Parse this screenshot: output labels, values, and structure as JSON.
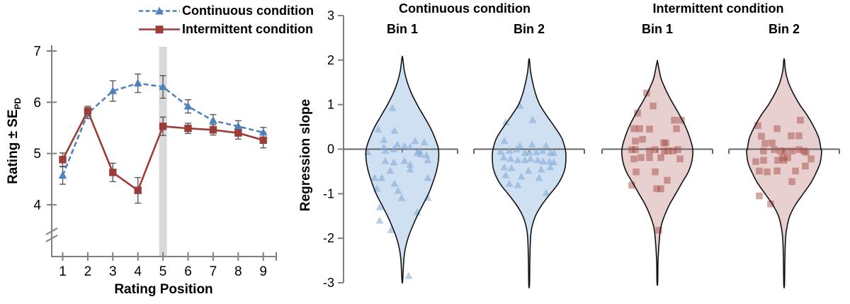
{
  "colors": {
    "continuous_line": "#4f81bd",
    "intermittent_line": "#9d3c38",
    "continuous_violin_fill": "#cfe0f2",
    "intermittent_violin_fill": "#e9d0d0",
    "continuous_point": "#7fa7d4",
    "intermittent_point": "#a85048",
    "violin_outline": "#111111",
    "axis": "#808080",
    "error_bar": "#595959",
    "highlight_band": "#d9d9d9",
    "zero_line": "#666666",
    "text": "#000000"
  },
  "figure": {
    "left": {
      "ylabel_main": "Rating ± SE",
      "ylabel_sub": "PD",
      "xlabel": "Rating Position"
    },
    "right": {
      "ylabel": "Regression slope",
      "group_titles": [
        "Continuous condition",
        "Intermittent condition"
      ],
      "bin_labels": [
        "Bin 1",
        "Bin 2",
        "Bin 1",
        "Bin 2"
      ]
    }
  },
  "chart_data": [
    {
      "type": "line",
      "title": "",
      "xlabel": "Rating Position",
      "ylabel": "Rating ± SE_PD",
      "x": [
        1,
        2,
        3,
        4,
        5,
        6,
        7,
        8,
        9
      ],
      "xticks": [
        1,
        2,
        3,
        4,
        5,
        6,
        7,
        8,
        9
      ],
      "yticks": [
        4,
        5,
        6,
        7
      ],
      "y_axis_break": true,
      "highlight_x": 5,
      "legend_position": "top",
      "series": [
        {
          "name": "Continuous condition",
          "marker": "triangle",
          "line_style": "dashed",
          "values": [
            4.57,
            5.78,
            6.22,
            6.37,
            6.3,
            5.92,
            5.64,
            5.53,
            5.41
          ],
          "errors": [
            0.17,
            0.1,
            0.2,
            0.18,
            0.22,
            0.13,
            0.12,
            0.11,
            0.1
          ]
        },
        {
          "name": "Intermittent condition",
          "marker": "square",
          "line_style": "solid",
          "values": [
            4.88,
            5.83,
            4.63,
            4.28,
            5.53,
            5.49,
            5.46,
            5.4,
            5.26
          ],
          "errors": [
            0.13,
            0.09,
            0.18,
            0.25,
            0.18,
            0.1,
            0.1,
            0.12,
            0.15
          ]
        }
      ]
    },
    {
      "type": "violin",
      "ylabel": "Regression slope",
      "yticks": [
        3,
        2,
        1,
        0,
        -1,
        -2,
        -3
      ],
      "ylim": [
        -3,
        3
      ],
      "zero_reference_line": 0,
      "violins": [
        {
          "group": "Continuous condition",
          "bin": "Bin 1",
          "marker": "triangle",
          "profile": [
            [
              2.05,
              0.5
            ],
            [
              1.75,
              3
            ],
            [
              1.5,
              7
            ],
            [
              1.25,
              13
            ],
            [
              1.0,
              21
            ],
            [
              0.75,
              30
            ],
            [
              0.5,
              39
            ],
            [
              0.25,
              46
            ],
            [
              0,
              51
            ],
            [
              -0.25,
              51
            ],
            [
              -0.5,
              48
            ],
            [
              -0.75,
              43
            ],
            [
              -1.0,
              37
            ],
            [
              -1.25,
              29
            ],
            [
              -1.5,
              21
            ],
            [
              -1.75,
              14
            ],
            [
              -2.0,
              8
            ],
            [
              -2.25,
              4
            ],
            [
              -2.5,
              2
            ],
            [
              -2.95,
              0.5
            ]
          ],
          "points": [
            [
              -14,
              0.92
            ],
            [
              -34,
              0.44
            ],
            [
              -11,
              0.41
            ],
            [
              -26,
              0.2
            ],
            [
              18,
              0.18
            ],
            [
              31,
              0.15
            ],
            [
              -7,
              0.1
            ],
            [
              3,
              0.07
            ],
            [
              11,
              0.04
            ],
            [
              -26,
              0.04
            ],
            [
              24,
              -0.04
            ],
            [
              -49,
              -0.07
            ],
            [
              -24,
              -0.04
            ],
            [
              -12,
              -0.01
            ],
            [
              21,
              -0.09
            ],
            [
              26,
              -0.12
            ],
            [
              34,
              -0.14
            ],
            [
              -24,
              -0.27
            ],
            [
              -12,
              -0.3
            ],
            [
              3,
              -0.27
            ],
            [
              11,
              -0.35
            ],
            [
              36,
              -0.25
            ],
            [
              -17,
              -0.49
            ],
            [
              11,
              -0.46
            ],
            [
              -39,
              -0.65
            ],
            [
              -29,
              -0.65
            ],
            [
              36,
              -0.65
            ],
            [
              -36,
              -0.89
            ],
            [
              -11,
              -0.78
            ],
            [
              -6,
              -0.94
            ],
            [
              -1,
              -1.1
            ],
            [
              36,
              -1.1
            ],
            [
              -32,
              -1.31
            ],
            [
              21,
              -1.42
            ],
            [
              -32,
              -1.61
            ],
            [
              -16,
              -1.82
            ],
            [
              9,
              -2.85
            ]
          ]
        },
        {
          "group": "Continuous condition",
          "bin": "Bin 2",
          "marker": "triangle",
          "profile": [
            [
              2.0,
              0.5
            ],
            [
              1.75,
              2
            ],
            [
              1.5,
              5
            ],
            [
              1.25,
              9
            ],
            [
              1.0,
              15
            ],
            [
              0.75,
              25
            ],
            [
              0.5,
              36
            ],
            [
              0.25,
              46
            ],
            [
              0,
              51
            ],
            [
              -0.15,
              52
            ],
            [
              -0.4,
              51
            ],
            [
              -0.6,
              47
            ],
            [
              -0.8,
              40
            ],
            [
              -1.0,
              30
            ],
            [
              -1.25,
              18
            ],
            [
              -1.5,
              9
            ],
            [
              -1.75,
              4
            ],
            [
              -2.0,
              2
            ],
            [
              -2.5,
              1
            ],
            [
              -3.05,
              0.5
            ]
          ],
          "points": [
            [
              -13,
              0.97
            ],
            [
              -33,
              0.6
            ],
            [
              5,
              0.65
            ],
            [
              -35,
              0.18
            ],
            [
              -13,
              0.07
            ],
            [
              4,
              0.1
            ],
            [
              24,
              0.07
            ],
            [
              -40,
              -0.06
            ],
            [
              -28,
              -0.04
            ],
            [
              -18,
              -0.01
            ],
            [
              -6,
              -0.09
            ],
            [
              0,
              -0.07
            ],
            [
              10,
              -0.07
            ],
            [
              19,
              -0.04
            ],
            [
              30,
              -0.09
            ],
            [
              35,
              -0.09
            ],
            [
              -36,
              -0.19
            ],
            [
              -26,
              -0.22
            ],
            [
              -16,
              -0.25
            ],
            [
              -6,
              -0.25
            ],
            [
              2,
              -0.22
            ],
            [
              12,
              -0.25
            ],
            [
              20,
              -0.28
            ],
            [
              29,
              -0.28
            ],
            [
              35,
              -0.3
            ],
            [
              -35,
              -0.41
            ],
            [
              -25,
              -0.43
            ],
            [
              -1,
              -0.49
            ],
            [
              17,
              -0.46
            ],
            [
              30,
              -0.41
            ],
            [
              -33,
              -0.59
            ],
            [
              -11,
              -0.62
            ],
            [
              14,
              -0.65
            ],
            [
              24,
              -0.99
            ],
            [
              -16,
              -0.81
            ],
            [
              -28,
              -0.78
            ]
          ]
        },
        {
          "group": "Intermittent condition",
          "bin": "Bin 1",
          "marker": "square",
          "profile": [
            [
              1.95,
              0.5
            ],
            [
              1.6,
              5
            ],
            [
              1.4,
              10
            ],
            [
              1.2,
              16
            ],
            [
              1.0,
              23
            ],
            [
              0.75,
              32
            ],
            [
              0.5,
              40
            ],
            [
              0.25,
              46
            ],
            [
              0,
              50
            ],
            [
              -0.25,
              49
            ],
            [
              -0.5,
              44
            ],
            [
              -0.75,
              35
            ],
            [
              -1.0,
              26
            ],
            [
              -1.25,
              17
            ],
            [
              -1.5,
              10
            ],
            [
              -1.75,
              5
            ],
            [
              -2.0,
              3
            ],
            [
              -2.5,
              1
            ],
            [
              -3.0,
              0.5
            ]
          ],
          "points": [
            [
              -15,
              1.26
            ],
            [
              -6,
              0.97
            ],
            [
              -28,
              0.81
            ],
            [
              24,
              0.65
            ],
            [
              34,
              0.65
            ],
            [
              -33,
              0.46
            ],
            [
              -25,
              0.46
            ],
            [
              -11,
              0.45
            ],
            [
              27,
              0.46
            ],
            [
              -31,
              0.18
            ],
            [
              -21,
              0.22
            ],
            [
              9,
              0.14
            ],
            [
              12,
              0.14
            ],
            [
              -36,
              -0.01
            ],
            [
              -31,
              -0.01
            ],
            [
              -11,
              -0.04
            ],
            [
              -3,
              -0.01
            ],
            [
              10,
              -0.04
            ],
            [
              15,
              -0.04
            ],
            [
              22,
              -0.04
            ],
            [
              29,
              -0.01
            ],
            [
              -33,
              -0.22
            ],
            [
              -23,
              -0.19
            ],
            [
              -11,
              -0.19
            ],
            [
              5,
              -0.19
            ],
            [
              32,
              -0.22
            ],
            [
              -30,
              -0.51
            ],
            [
              -3,
              -0.51
            ],
            [
              14,
              -0.7
            ],
            [
              -36,
              -0.81
            ],
            [
              -1,
              -0.89
            ],
            [
              5,
              -0.89
            ],
            [
              2,
              -1.82
            ]
          ]
        },
        {
          "group": "Intermittent condition",
          "bin": "Bin 2",
          "marker": "square",
          "profile": [
            [
              2.0,
              0.5
            ],
            [
              1.75,
              2
            ],
            [
              1.5,
              6
            ],
            [
              1.25,
              13
            ],
            [
              1.0,
              22
            ],
            [
              0.75,
              33
            ],
            [
              0.5,
              42
            ],
            [
              0.25,
              49
            ],
            [
              0,
              52
            ],
            [
              -0.05,
              53
            ],
            [
              -0.3,
              51
            ],
            [
              -0.5,
              46
            ],
            [
              -0.75,
              38
            ],
            [
              -1.0,
              27
            ],
            [
              -1.25,
              16
            ],
            [
              -1.5,
              8
            ],
            [
              -1.75,
              4
            ],
            [
              -2.0,
              2
            ],
            [
              -2.5,
              1
            ],
            [
              -3.05,
              0.5
            ]
          ],
          "points": [
            [
              23,
              0.65
            ],
            [
              -37,
              0.53
            ],
            [
              -10,
              0.46
            ],
            [
              10,
              0.3
            ],
            [
              21,
              0.3
            ],
            [
              -32,
              0.29
            ],
            [
              -27,
              0.13
            ],
            [
              -17,
              0.14
            ],
            [
              -29,
              -0.04
            ],
            [
              -14,
              -0.01
            ],
            [
              -5,
              -0.04
            ],
            [
              1,
              -0.04
            ],
            [
              11,
              -0.04
            ],
            [
              21,
              -0.01
            ],
            [
              28,
              -0.04
            ],
            [
              31,
              -0.07
            ],
            [
              -40,
              -0.28
            ],
            [
              -29,
              -0.25
            ],
            [
              -9,
              -0.25
            ],
            [
              -2,
              -0.19
            ],
            [
              0,
              -0.25
            ],
            [
              5,
              -0.19
            ],
            [
              38,
              -0.22
            ],
            [
              -35,
              -0.49
            ],
            [
              -24,
              -0.51
            ],
            [
              -10,
              -0.49
            ],
            [
              16,
              -0.49
            ],
            [
              30,
              -0.38
            ],
            [
              11,
              -0.73
            ],
            [
              -35,
              -1.05
            ],
            [
              -19,
              -1.23
            ]
          ]
        }
      ]
    }
  ]
}
